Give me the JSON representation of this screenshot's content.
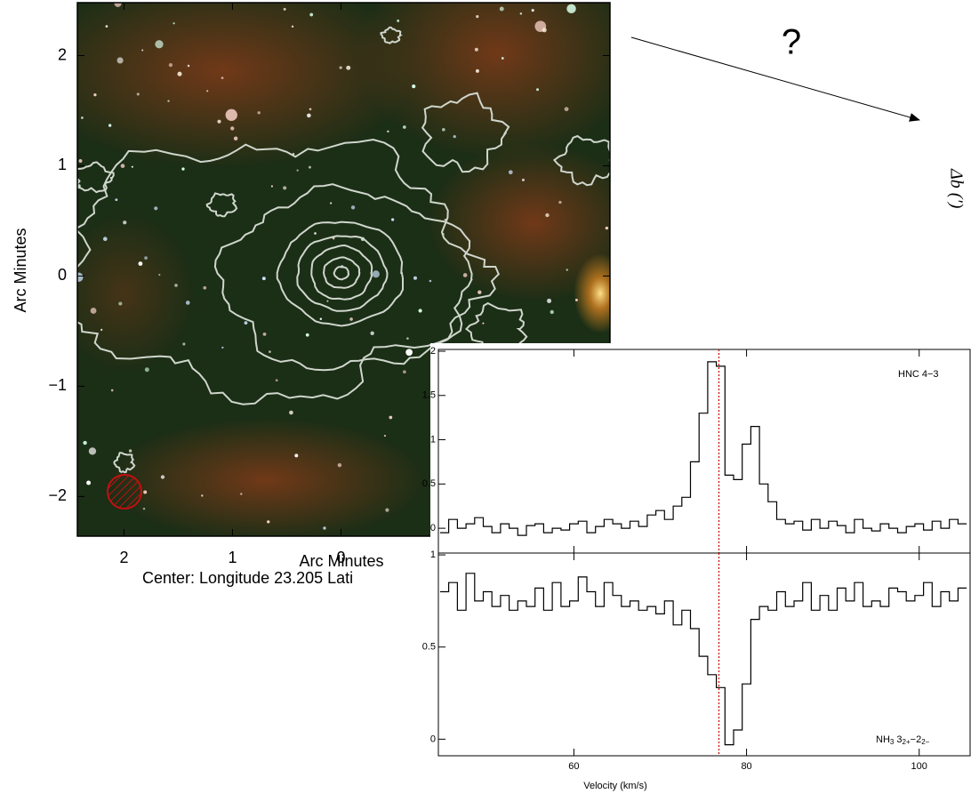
{
  "annotations": {
    "question": "?",
    "right_label": "Δb (′)"
  },
  "chart_data": [
    {
      "type": "image",
      "xlabel": "Arc Minutes",
      "ylabel": "Arc Minutes",
      "subtitle": "Center:  Longitude 23.205 Lati",
      "xlim": [
        2.43,
        -2.48
      ],
      "ylim": [
        -2.36,
        2.48
      ],
      "xticks": [
        2,
        1,
        0
      ],
      "yticks": [
        {
          "value": -2,
          "label": "−2"
        },
        {
          "value": -1,
          "label": "−1"
        },
        0,
        1,
        2
      ]
    },
    {
      "type": "step",
      "label": "HNC 4−3",
      "color": "#000000",
      "x": [
        45,
        46,
        47,
        48,
        49,
        50,
        51,
        52,
        53,
        54,
        55,
        56,
        57,
        58,
        59,
        60,
        61,
        62,
        63,
        64,
        65,
        66,
        67,
        68,
        69,
        70,
        71,
        72,
        73,
        74,
        75,
        76,
        77,
        78,
        79,
        80,
        81,
        82,
        83,
        84,
        85,
        86,
        87,
        88,
        89,
        90,
        91,
        92,
        93,
        94,
        95,
        96,
        97,
        98,
        99,
        100,
        101,
        102,
        103,
        104,
        105
      ],
      "values": [
        -0.05,
        0.1,
        0.0,
        0.05,
        0.12,
        0.02,
        -0.05,
        0.05,
        0.0,
        -0.08,
        0.03,
        0.05,
        -0.05,
        0.0,
        -0.02,
        0.05,
        0.08,
        -0.05,
        0.02,
        0.1,
        0.05,
        0.0,
        0.08,
        0.02,
        0.15,
        0.2,
        0.1,
        0.25,
        0.35,
        0.75,
        1.3,
        1.88,
        1.83,
        0.6,
        0.55,
        0.95,
        1.15,
        0.5,
        0.3,
        0.1,
        0.05,
        0.08,
        -0.02,
        0.1,
        0.0,
        0.08,
        0.03,
        -0.05,
        0.1,
        0.0,
        -0.03,
        0.05,
        0.0,
        -0.05,
        0.02,
        0.05,
        -0.02,
        0.08,
        0.0,
        0.1,
        0.05
      ],
      "xlim": [
        44.3,
        105.9
      ],
      "ylim": [
        -0.28,
        2.02
      ],
      "yticks": [
        0,
        0.5,
        1,
        1.5,
        2
      ],
      "vline": 76.8,
      "vline_color": "#cc0000"
    },
    {
      "type": "step",
      "label_parts": [
        {
          "text": "NH"
        },
        {
          "text": "3",
          "sub": true
        },
        {
          "text": " 3"
        },
        {
          "text": "2+",
          "sub": true
        },
        {
          "text": "−2"
        },
        {
          "text": "2−",
          "sub": true
        }
      ],
      "color": "#000000",
      "x": [
        45,
        46,
        47,
        48,
        49,
        50,
        51,
        52,
        53,
        54,
        55,
        56,
        57,
        58,
        59,
        60,
        61,
        62,
        63,
        64,
        65,
        66,
        67,
        68,
        69,
        70,
        71,
        72,
        73,
        74,
        75,
        76,
        77,
        78,
        79,
        80,
        81,
        82,
        83,
        84,
        85,
        86,
        87,
        88,
        89,
        90,
        91,
        92,
        93,
        94,
        95,
        96,
        97,
        98,
        99,
        100,
        101,
        102,
        103,
        104,
        105
      ],
      "values": [
        0.8,
        0.85,
        0.7,
        0.9,
        0.75,
        0.8,
        0.72,
        0.78,
        0.7,
        0.75,
        0.72,
        0.82,
        0.7,
        0.85,
        0.72,
        0.75,
        0.88,
        0.8,
        0.72,
        0.85,
        0.78,
        0.72,
        0.75,
        0.7,
        0.72,
        0.68,
        0.75,
        0.62,
        0.7,
        0.6,
        0.45,
        0.35,
        0.28,
        -0.03,
        0.05,
        0.3,
        0.65,
        0.72,
        0.7,
        0.8,
        0.72,
        0.75,
        0.85,
        0.7,
        0.78,
        0.7,
        0.82,
        0.75,
        0.85,
        0.72,
        0.75,
        0.72,
        0.82,
        0.8,
        0.75,
        0.78,
        0.85,
        0.72,
        0.8,
        0.75,
        0.82
      ],
      "xlim": [
        44.3,
        105.9
      ],
      "ylim": [
        -0.09,
        1.01
      ],
      "yticks": [
        0,
        0.5,
        1
      ],
      "xticks": [
        60,
        80,
        100
      ],
      "xlabel": "Velocity (km/s)",
      "vline": 76.8,
      "vline_color": "#cc0000"
    }
  ]
}
